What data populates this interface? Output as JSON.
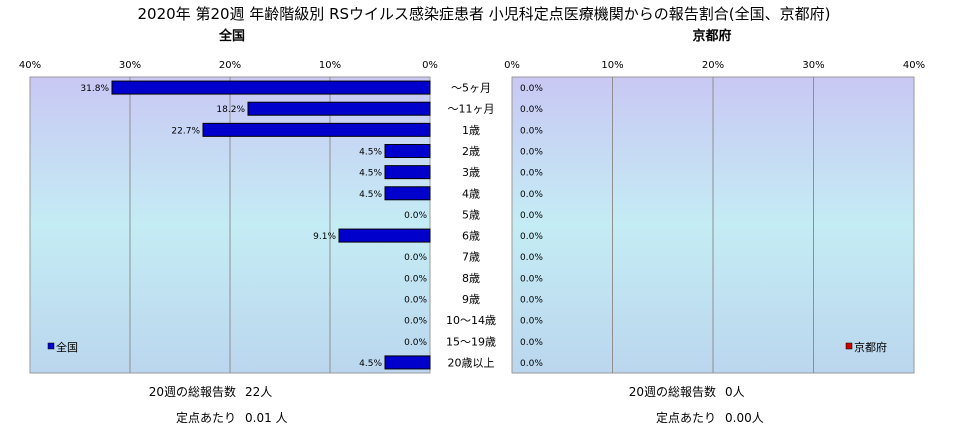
{
  "title": "2020年 第20週 年齢階級別 RSウイルス感染症患者 小児科定点医療機関からの報告割合(全国、京都府)",
  "chart_data": [
    {
      "type": "bar",
      "orientation": "horizontal",
      "subtitle": "全国",
      "direction": "right-to-left",
      "xlim": [
        0,
        40
      ],
      "x_ticks": [
        "40%",
        "30%",
        "20%",
        "10%",
        "0%"
      ],
      "categories": [
        "～5ヶ月",
        "～11ヶ月",
        "1歳",
        "2歳",
        "3歳",
        "4歳",
        "5歳",
        "6歳",
        "7歳",
        "8歳",
        "9歳",
        "10～14歳",
        "15～19歳",
        "20歳以上"
      ],
      "series": [
        {
          "name": "全国",
          "color": "#0000cc",
          "values": [
            31.8,
            18.2,
            22.7,
            4.5,
            4.5,
            4.5,
            0.0,
            9.1,
            0.0,
            0.0,
            0.0,
            0.0,
            0.0,
            4.5
          ],
          "labels": [
            "31.8%",
            "18.2%",
            "22.7%",
            "4.5%",
            "4.5%",
            "4.5%",
            "0.0%",
            "9.1%",
            "0.0%",
            "0.0%",
            "0.0%",
            "0.0%",
            "0.0%",
            "4.5%"
          ]
        }
      ],
      "legend_position": "bottom-left",
      "grid": true,
      "footer": {
        "total_label": "20週の総報告数",
        "total_value": "22人",
        "per_site_label": "定点あたり",
        "per_site_value": "0.01 人"
      }
    },
    {
      "type": "bar",
      "orientation": "horizontal",
      "subtitle": "京都府",
      "direction": "left-to-right",
      "xlim": [
        0,
        40
      ],
      "x_ticks": [
        "0%",
        "10%",
        "20%",
        "30%",
        "40%"
      ],
      "categories": [
        "～5ヶ月",
        "～11ヶ月",
        "1歳",
        "2歳",
        "3歳",
        "4歳",
        "5歳",
        "6歳",
        "7歳",
        "8歳",
        "9歳",
        "10～14歳",
        "15～19歳",
        "20歳以上"
      ],
      "series": [
        {
          "name": "京都府",
          "color": "#cc0000",
          "values": [
            0.0,
            0.0,
            0.0,
            0.0,
            0.0,
            0.0,
            0.0,
            0.0,
            0.0,
            0.0,
            0.0,
            0.0,
            0.0,
            0.0
          ],
          "labels": [
            "0.0%",
            "0.0%",
            "0.0%",
            "0.0%",
            "0.0%",
            "0.0%",
            "0.0%",
            "0.0%",
            "0.0%",
            "0.0%",
            "0.0%",
            "0.0%",
            "0.0%",
            "0.0%"
          ]
        }
      ],
      "legend_position": "bottom-right",
      "grid": true,
      "footer": {
        "total_label": "20週の総報告数",
        "total_value": "0人",
        "per_site_label": "定点あたり",
        "per_site_value": "0.00人"
      }
    }
  ]
}
